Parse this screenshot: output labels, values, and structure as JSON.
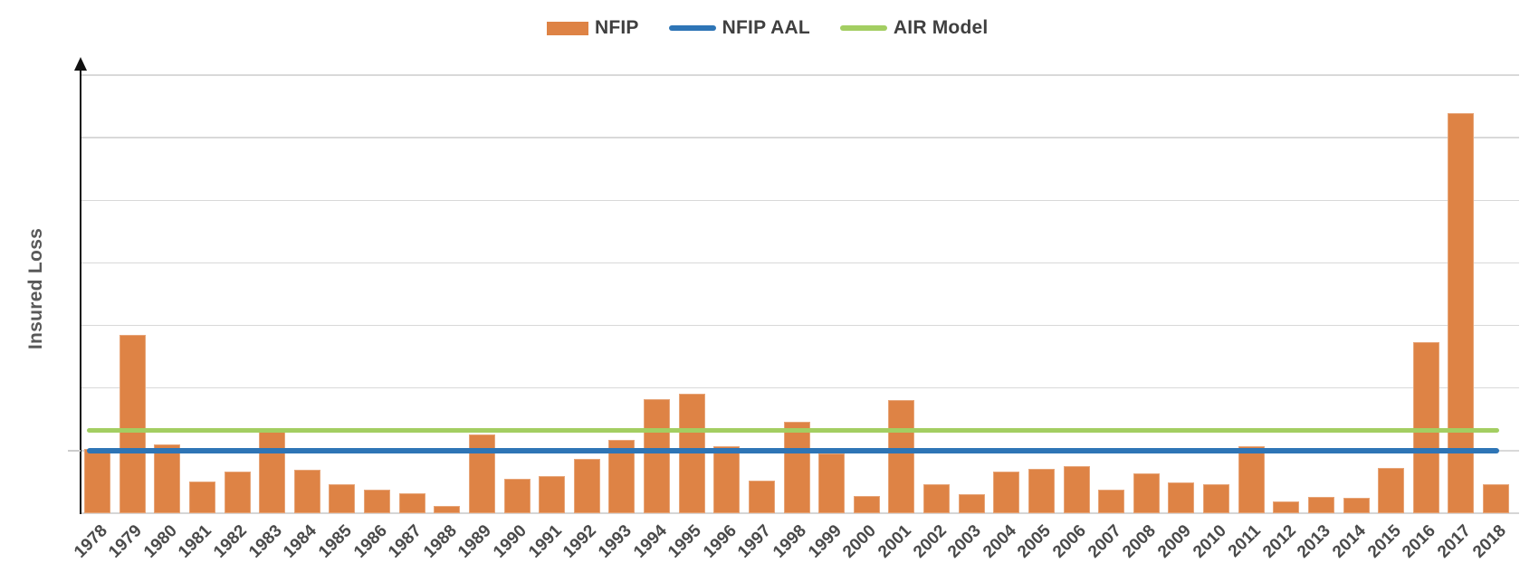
{
  "chart_data": {
    "type": "bar",
    "title": "",
    "xlabel": "",
    "ylabel": "Insured Loss",
    "categories": [
      "1978",
      "1979",
      "1980",
      "1981",
      "1982",
      "1983",
      "1984",
      "1985",
      "1986",
      "1987",
      "1988",
      "1989",
      "1990",
      "1991",
      "1992",
      "1993",
      "1994",
      "1995",
      "1996",
      "1997",
      "1998",
      "1999",
      "2000",
      "2001",
      "2002",
      "2003",
      "2004",
      "2005",
      "2006",
      "2007",
      "2008",
      "2009",
      "2010",
      "2011",
      "2012",
      "2013",
      "2014",
      "2015",
      "2016",
      "2017",
      "2018"
    ],
    "series": [
      {
        "name": "NFIP",
        "type": "bar",
        "color": "#DE8345",
        "values": [
          1.03,
          2.85,
          1.1,
          0.51,
          0.66,
          1.3,
          0.69,
          0.46,
          0.38,
          0.32,
          0.12,
          1.26,
          0.55,
          0.59,
          0.87,
          1.17,
          1.82,
          1.91,
          1.07,
          0.52,
          1.46,
          0.96,
          0.28,
          1.81,
          0.46,
          0.31,
          0.66,
          0.71,
          0.75,
          0.38,
          0.64,
          0.49,
          0.46,
          1.07,
          0.19,
          0.26,
          0.24,
          0.72,
          2.73,
          6.39,
          0.46
        ]
      },
      {
        "name": "NFIP AAL",
        "type": "hline",
        "color": "#2E75B6",
        "value": 1.0
      },
      {
        "name": "AIR Model",
        "type": "hline",
        "color": "#A3CE62",
        "value": 1.32
      }
    ],
    "ylim": [
      0,
      7
    ],
    "y_tick_labels": "none (unlabeled relative scale; values in gridline units)",
    "grid": "horizontal gridlines, 7 above baseline",
    "legend_position": "top-center",
    "x_label_rotation_deg": -45
  }
}
